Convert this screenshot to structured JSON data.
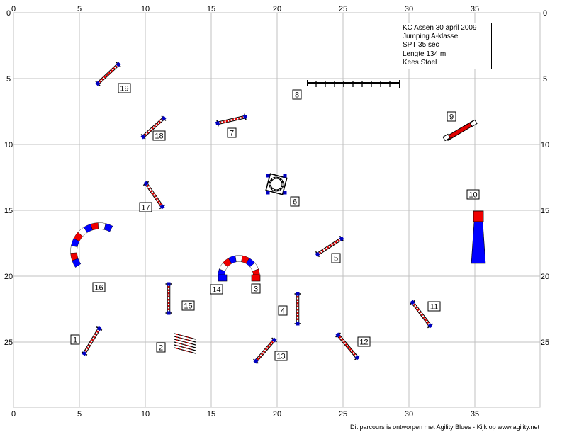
{
  "axes": {
    "top_ticks": [
      "0",
      "5",
      "10",
      "15",
      "20",
      "25",
      "30",
      "35"
    ],
    "bottom_ticks": [
      "0",
      "5",
      "10",
      "15",
      "20",
      "25",
      "30",
      "35"
    ],
    "left_ticks": [
      "0",
      "5",
      "10",
      "15",
      "20",
      "25"
    ],
    "right_ticks": [
      "0",
      "5",
      "10",
      "15",
      "20",
      "25"
    ]
  },
  "info": {
    "line1": "KC Assen 30 april 2009",
    "line2": "Jumping A-klasse",
    "line3": "SPT 35 sec",
    "line4": "Lengte 134 m",
    "line5": "Kees Stoel"
  },
  "obstacles": [
    {
      "number": "1",
      "type": "jump"
    },
    {
      "number": "2",
      "type": "hurdle-brush"
    },
    {
      "number": "3",
      "type": "tunnel-end"
    },
    {
      "number": "4",
      "type": "jump"
    },
    {
      "number": "5",
      "type": "jump"
    },
    {
      "number": "6",
      "type": "tire"
    },
    {
      "number": "7",
      "type": "jump"
    },
    {
      "number": "8",
      "type": "long-jump"
    },
    {
      "number": "9",
      "type": "wall"
    },
    {
      "number": "10",
      "type": "long-tunnel"
    },
    {
      "number": "11",
      "type": "jump"
    },
    {
      "number": "12",
      "type": "jump"
    },
    {
      "number": "13",
      "type": "jump"
    },
    {
      "number": "14",
      "type": "tunnel"
    },
    {
      "number": "15",
      "type": "jump"
    },
    {
      "number": "16",
      "type": "tunnel"
    },
    {
      "number": "17",
      "type": "jump"
    },
    {
      "number": "18",
      "type": "jump"
    },
    {
      "number": "19",
      "type": "jump"
    }
  ],
  "colors": {
    "grid": "#c0c0c0",
    "bar_red": "#e00000",
    "post_blue": "#0000c0",
    "tunnel_red": "#f00000",
    "tunnel_blue": "#0000ff"
  },
  "footer": "Dit parcours is ontworpen met Agility Blues - Kijk op www.agility.net"
}
